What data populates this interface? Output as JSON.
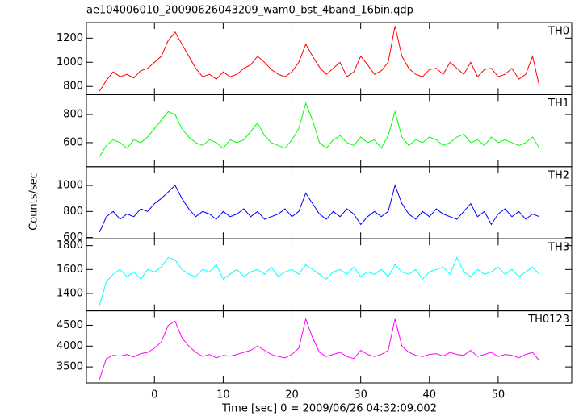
{
  "title": "ae104006010_20090626043209_wam0_bst_4band_16bin.qdp",
  "ylabel": "Counts/sec",
  "xlabel": "Time [sec] 0 = 2009/06/26 04:32:09.002",
  "chart_data": [
    {
      "type": "line",
      "label": "TH0",
      "color": "#ff0000",
      "x": [
        -8,
        -7,
        -6,
        -5,
        -4,
        -3,
        -2,
        -1,
        0,
        1,
        2,
        3,
        4,
        5,
        6,
        7,
        8,
        9,
        10,
        11,
        12,
        13,
        14,
        15,
        16,
        17,
        18,
        19,
        20,
        21,
        22,
        23,
        24,
        25,
        26,
        27,
        28,
        29,
        30,
        31,
        32,
        33,
        34,
        35,
        36,
        37,
        38,
        39,
        40,
        41,
        42,
        43,
        44,
        45,
        46,
        47,
        48,
        49,
        50,
        51,
        52,
        53,
        54,
        55,
        56
      ],
      "values": [
        760,
        850,
        920,
        880,
        900,
        870,
        930,
        950,
        1000,
        1050,
        1180,
        1250,
        1150,
        1050,
        950,
        880,
        900,
        860,
        920,
        880,
        900,
        950,
        980,
        1050,
        1000,
        940,
        900,
        880,
        920,
        1000,
        1150,
        1050,
        960,
        900,
        950,
        1000,
        880,
        920,
        1050,
        980,
        900,
        930,
        1000,
        1300,
        1050,
        950,
        900,
        880,
        940,
        950,
        900,
        1000,
        950,
        900,
        1000,
        880,
        940,
        950,
        880,
        900,
        950,
        860,
        900,
        1050,
        800
      ],
      "xlim": [
        -9.9,
        60.7
      ],
      "xticks": [
        0,
        10,
        20,
        30,
        40,
        50
      ],
      "ylim": [
        732,
        1329
      ],
      "yticks": [
        800,
        1000,
        1200
      ]
    },
    {
      "type": "line",
      "label": "TH1",
      "color": "#00ff00",
      "x": [
        -8,
        -7,
        -6,
        -5,
        -4,
        -3,
        -2,
        -1,
        0,
        1,
        2,
        3,
        4,
        5,
        6,
        7,
        8,
        9,
        10,
        11,
        12,
        13,
        14,
        15,
        16,
        17,
        18,
        19,
        20,
        21,
        22,
        23,
        24,
        25,
        26,
        27,
        28,
        29,
        30,
        31,
        32,
        33,
        34,
        35,
        36,
        37,
        38,
        39,
        40,
        41,
        42,
        43,
        44,
        45,
        46,
        47,
        48,
        49,
        50,
        51,
        52,
        53,
        54,
        55,
        56
      ],
      "values": [
        500,
        580,
        620,
        600,
        560,
        620,
        600,
        640,
        700,
        760,
        820,
        800,
        700,
        640,
        600,
        580,
        620,
        600,
        560,
        620,
        600,
        620,
        680,
        740,
        650,
        600,
        580,
        560,
        620,
        700,
        880,
        760,
        600,
        560,
        620,
        650,
        600,
        580,
        640,
        600,
        620,
        560,
        650,
        820,
        640,
        580,
        620,
        600,
        640,
        620,
        580,
        600,
        640,
        660,
        600,
        620,
        580,
        640,
        600,
        620,
        600,
        580,
        600,
        640,
        560
      ],
      "xlim": [
        -9.9,
        60.7
      ],
      "xticks": [
        0,
        10,
        20,
        30,
        40,
        50
      ],
      "ylim": [
        429,
        941
      ],
      "yticks": [
        600,
        800
      ]
    },
    {
      "type": "line",
      "label": "TH2",
      "color": "#0000ff",
      "x": [
        -8,
        -7,
        -6,
        -5,
        -4,
        -3,
        -2,
        -1,
        0,
        1,
        2,
        3,
        4,
        5,
        6,
        7,
        8,
        9,
        10,
        11,
        12,
        13,
        14,
        15,
        16,
        17,
        18,
        19,
        20,
        21,
        22,
        23,
        24,
        25,
        26,
        27,
        28,
        29,
        30,
        31,
        32,
        33,
        34,
        35,
        36,
        37,
        38,
        39,
        40,
        41,
        42,
        43,
        44,
        45,
        46,
        47,
        48,
        49,
        50,
        51,
        52,
        53,
        54,
        55,
        56
      ],
      "values": [
        640,
        760,
        800,
        740,
        780,
        760,
        820,
        800,
        860,
        900,
        950,
        1000,
        900,
        820,
        760,
        800,
        780,
        740,
        800,
        760,
        780,
        820,
        760,
        800,
        740,
        760,
        780,
        820,
        760,
        800,
        940,
        860,
        780,
        740,
        800,
        760,
        820,
        780,
        700,
        760,
        800,
        760,
        800,
        1000,
        860,
        780,
        740,
        800,
        760,
        820,
        780,
        760,
        740,
        800,
        860,
        760,
        800,
        700,
        780,
        820,
        760,
        800,
        740,
        780,
        760
      ],
      "xlim": [
        -9.9,
        60.7
      ],
      "xticks": [
        0,
        10,
        20,
        30,
        40,
        50
      ],
      "ylim": [
        590,
        1144
      ],
      "yticks": [
        600,
        800,
        1000
      ]
    },
    {
      "type": "line",
      "label": "TH3",
      "color": "#00ffff",
      "x": [
        -8,
        -7,
        -6,
        -5,
        -4,
        -3,
        -2,
        -1,
        0,
        1,
        2,
        3,
        4,
        5,
        6,
        7,
        8,
        9,
        10,
        11,
        12,
        13,
        14,
        15,
        16,
        17,
        18,
        19,
        20,
        21,
        22,
        23,
        24,
        25,
        26,
        27,
        28,
        29,
        30,
        31,
        32,
        33,
        34,
        35,
        36,
        37,
        38,
        39,
        40,
        41,
        42,
        43,
        44,
        45,
        46,
        47,
        48,
        49,
        50,
        51,
        52,
        53,
        54,
        55,
        56
      ],
      "values": [
        1300,
        1500,
        1560,
        1600,
        1540,
        1580,
        1520,
        1600,
        1580,
        1620,
        1700,
        1680,
        1600,
        1560,
        1540,
        1600,
        1580,
        1640,
        1520,
        1560,
        1600,
        1540,
        1580,
        1600,
        1560,
        1620,
        1540,
        1580,
        1600,
        1560,
        1640,
        1600,
        1560,
        1520,
        1580,
        1600,
        1560,
        1620,
        1540,
        1580,
        1560,
        1600,
        1540,
        1640,
        1580,
        1560,
        1600,
        1520,
        1580,
        1600,
        1620,
        1560,
        1700,
        1580,
        1540,
        1600,
        1560,
        1580,
        1620,
        1560,
        1600,
        1540,
        1580,
        1620,
        1560
      ],
      "xlim": [
        -9.9,
        60.7
      ],
      "xticks": [
        0,
        10,
        20,
        30,
        40,
        50
      ],
      "ylim": [
        1254,
        1857
      ],
      "yticks": [
        1400,
        1600,
        1800
      ]
    },
    {
      "type": "line",
      "label": "TH0123",
      "color": "#ff00ff",
      "x": [
        -8,
        -7,
        -6,
        -5,
        -4,
        -3,
        -2,
        -1,
        0,
        1,
        2,
        3,
        4,
        5,
        6,
        7,
        8,
        9,
        10,
        11,
        12,
        13,
        14,
        15,
        16,
        17,
        18,
        19,
        20,
        21,
        22,
        23,
        24,
        25,
        26,
        27,
        28,
        29,
        30,
        31,
        32,
        33,
        34,
        35,
        36,
        37,
        38,
        39,
        40,
        41,
        42,
        43,
        44,
        45,
        46,
        47,
        48,
        49,
        50,
        51,
        52,
        53,
        54,
        55,
        56
      ],
      "values": [
        3200,
        3700,
        3780,
        3760,
        3800,
        3740,
        3820,
        3850,
        3950,
        4100,
        4500,
        4600,
        4200,
        4000,
        3850,
        3750,
        3800,
        3720,
        3780,
        3760,
        3800,
        3850,
        3900,
        4000,
        3900,
        3800,
        3750,
        3720,
        3800,
        3950,
        4650,
        4200,
        3850,
        3750,
        3800,
        3850,
        3750,
        3700,
        3900,
        3800,
        3750,
        3800,
        3900,
        4650,
        4000,
        3850,
        3780,
        3750,
        3800,
        3820,
        3760,
        3850,
        3800,
        3780,
        3900,
        3750,
        3800,
        3850,
        3750,
        3800,
        3780,
        3720,
        3800,
        3850,
        3650
      ],
      "xlim": [
        -9.9,
        60.7
      ],
      "xticks": [
        0,
        10,
        20,
        30,
        40,
        50
      ],
      "ylim": [
        3115,
        4846
      ],
      "yticks": [
        3500,
        4000,
        4500
      ]
    }
  ]
}
